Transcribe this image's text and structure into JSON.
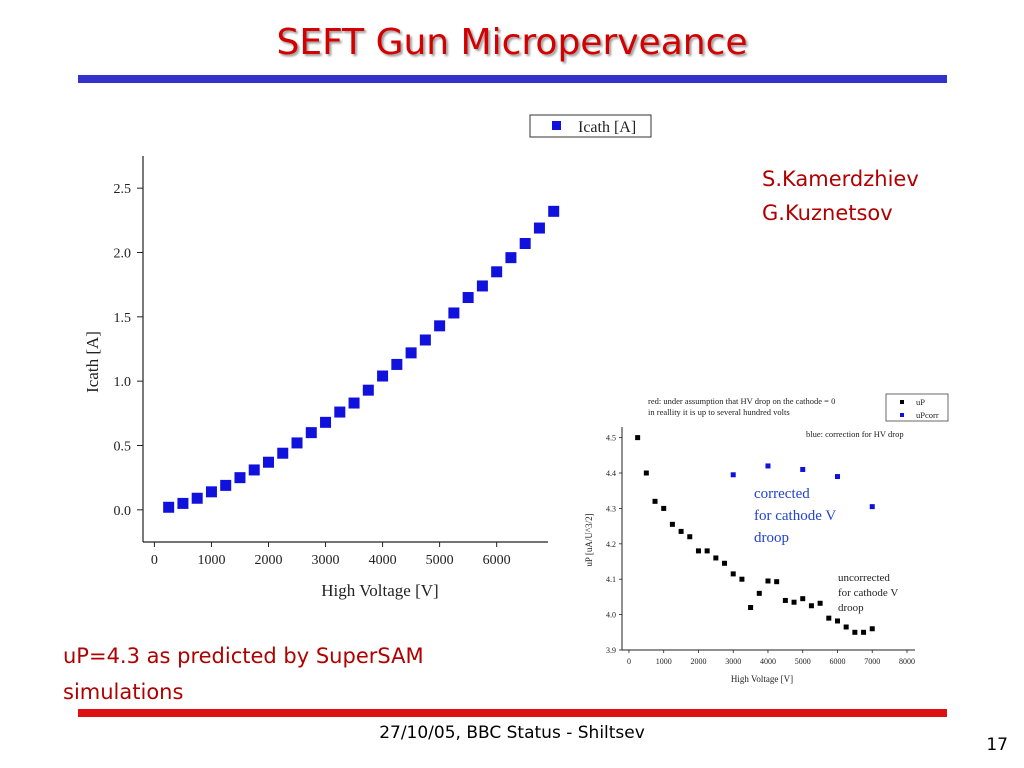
{
  "slide": {
    "title": "SEFT Gun Microperveance",
    "authors": [
      "S.Kamerdzhiev",
      "G.Kuznetsov"
    ],
    "note_lines": [
      "uP=4.3 as predicted by SuperSAM",
      "simulations"
    ],
    "footer": "27/10/05, BBC Status - Shiltsev",
    "page_number": "17"
  },
  "colors": {
    "title": "#d40000",
    "top_rule": "#3333cc",
    "bottom_rule": "#dd1111",
    "author_text": "#b00000",
    "series_blue": "#1111dd",
    "series_black": "#000000"
  },
  "chart_data": [
    {
      "type": "scatter",
      "xlabel": "High Voltage [V]",
      "ylabel": "Icath [A]",
      "xlim": [
        -200,
        6900
      ],
      "ylim": [
        -0.25,
        2.75
      ],
      "x_ticks": [
        0,
        1000,
        2000,
        3000,
        4000,
        5000,
        6000
      ],
      "x_tick_labels": [
        "0",
        "1000",
        "2000",
        "3000",
        "4000",
        "5000",
        "6000"
      ],
      "y_ticks": [
        0.0,
        0.5,
        1.0,
        1.5,
        2.0,
        2.5
      ],
      "y_tick_labels": [
        "0.0",
        "0.5",
        "1.0",
        "1.5",
        "2.0",
        "2.5"
      ],
      "legend_position": "top-right",
      "series": [
        {
          "name": "Icath [A]",
          "color": "#1111dd",
          "x": [
            250,
            500,
            750,
            1000,
            1250,
            1500,
            1750,
            2000,
            2250,
            2500,
            2750,
            3000,
            3250,
            3500,
            3750,
            4000,
            4250,
            4500,
            4750,
            5000,
            5250,
            5500,
            5750,
            6000,
            6250,
            6500,
            6750,
            7000
          ],
          "y": [
            0.02,
            0.05,
            0.09,
            0.14,
            0.19,
            0.25,
            0.31,
            0.37,
            0.44,
            0.52,
            0.6,
            0.68,
            0.76,
            0.83,
            0.93,
            1.04,
            1.13,
            1.22,
            1.32,
            1.43,
            1.53,
            1.65,
            1.74,
            1.85,
            1.96,
            2.07,
            2.19,
            2.32
          ]
        }
      ]
    },
    {
      "type": "scatter",
      "xlabel": "High Voltage [V]",
      "ylabel": "uP [uA/U^3/2]",
      "xlim": [
        -200,
        8000
      ],
      "ylim": [
        3.9,
        4.53
      ],
      "x_ticks": [
        0,
        1000,
        2000,
        3000,
        4000,
        5000,
        6000,
        7000,
        8000
      ],
      "x_tick_labels": [
        "0",
        "1000",
        "2000",
        "3000",
        "4000",
        "5000",
        "6000",
        "7000",
        "8000"
      ],
      "y_ticks": [
        3.9,
        4.0,
        4.1,
        4.2,
        4.3,
        4.4,
        4.5
      ],
      "y_tick_labels": [
        "3.9",
        "4.0",
        "4.1",
        "4.2",
        "4.3",
        "4.4",
        "4.5"
      ],
      "legend_position": "top-right",
      "annotations": [
        "red: under assumption that HV drop on the cathode = 0",
        "in reallity it is up to several hundred volts",
        "blue: correction for HV drop"
      ],
      "labels": {
        "corrected": [
          "corrected",
          "for cathode V",
          "droop"
        ],
        "uncorrected": [
          "uncorrected",
          "for cathode V",
          "droop"
        ]
      },
      "series": [
        {
          "name": "uP",
          "color": "#000000",
          "x": [
            250,
            500,
            750,
            1000,
            1250,
            1500,
            1750,
            2000,
            2250,
            2500,
            2750,
            3000,
            3250,
            3500,
            3750,
            4000,
            4250,
            4500,
            4750,
            5000,
            5250,
            5500,
            5750,
            6000,
            6250,
            6500,
            6750,
            7000
          ],
          "y": [
            4.5,
            4.4,
            4.32,
            4.3,
            4.255,
            4.235,
            4.22,
            4.18,
            4.18,
            4.16,
            4.145,
            4.115,
            4.1,
            4.02,
            4.06,
            4.095,
            4.093,
            4.04,
            4.035,
            4.045,
            4.025,
            4.032,
            3.99,
            3.982,
            3.965,
            3.95,
            3.95,
            3.96
          ]
        },
        {
          "name": "uPcorr",
          "color": "#1111dd",
          "x": [
            3000,
            4000,
            5000,
            6000,
            7000
          ],
          "y": [
            4.395,
            4.42,
            4.41,
            4.39,
            4.305
          ]
        }
      ]
    }
  ]
}
